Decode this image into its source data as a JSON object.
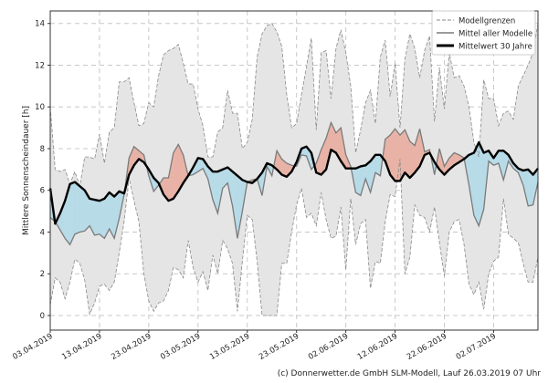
{
  "chart_data": {
    "type": "area",
    "title": "",
    "xlabel": "",
    "ylabel": "Mittlere Sonnenscheindauer [h]",
    "ylim": [
      -0.7,
      14.6
    ],
    "yticks": [
      0,
      2,
      4,
      6,
      8,
      10,
      12,
      14
    ],
    "xtick_labels": [
      "03.04.2019",
      "13.04.2019",
      "23.04.2019",
      "03.05.2019",
      "13.05.2019",
      "23.05.2019",
      "02.06.2019",
      "12.06.2019",
      "22.06.2019",
      "02.07.2019"
    ],
    "xtick_step_days": 10,
    "x_start": "03.04.2019",
    "grid": true,
    "legend_position": "top-right",
    "legend": [
      "Modellgrenzen",
      "Mittel aller Modelle",
      "Mittelwert 30 Jahre"
    ],
    "series": [
      {
        "name": "Modellgrenzen (oben)",
        "values": [
          10.0,
          7.0,
          6.9,
          7.0,
          6.3,
          6.9,
          6.2,
          7.6,
          7.6,
          7.5,
          8.7,
          7.3,
          8.8,
          9.0,
          11.2,
          11.2,
          11.4,
          10.2,
          9.1,
          9.2,
          10.2,
          10.0,
          11.5,
          12.5,
          12.7,
          12.8,
          13.0,
          12.1,
          11.1,
          11.1,
          9.9,
          9.1,
          7.6,
          7.6,
          8.8,
          9.0,
          10.8,
          9.7,
          9.7,
          8.0,
          8.3,
          9.4,
          12.4,
          13.5,
          13.9,
          14.0,
          13.6,
          12.9,
          10.6,
          9.0,
          9.2,
          10.6,
          11.9,
          13.3,
          8.9,
          12.6,
          12.7,
          10.4,
          12.8,
          13.7,
          12.6,
          11.0,
          7.8,
          8.9,
          10.2,
          10.8,
          9.2,
          12.4,
          13.2,
          10.5,
          12.1,
          9.0,
          12.3,
          13.5,
          12.8,
          11.4,
          12.7,
          13.4,
          9.3,
          11.9,
          9.9,
          12.6,
          11.4,
          11.5,
          11.0,
          10.0,
          8.3,
          7.6,
          11.3,
          10.4,
          10.4,
          9.1,
          9.7,
          9.8,
          9.4,
          11.0,
          11.5,
          12.0,
          12.6,
          14.0
        ]
      },
      {
        "name": "Modellgrenzen (unten)",
        "values": [
          0.5,
          1.8,
          1.6,
          0.8,
          1.6,
          2.7,
          2.5,
          1.7,
          0.05,
          0.6,
          1.4,
          1.5,
          1.2,
          1.6,
          3.0,
          4.5,
          6.6,
          5.5,
          4.5,
          2.0,
          0.7,
          0.2,
          0.6,
          0.7,
          1.2,
          2.3,
          2.2,
          1.8,
          3.6,
          2.3,
          1.6,
          2.1,
          1.2,
          2.9,
          2.0,
          3.6,
          3.2,
          2.5,
          0.2,
          2.6,
          4.8,
          4.6,
          2.6,
          0.0,
          0.0,
          0.0,
          0.0,
          2.5,
          2.5,
          4.0,
          5.3,
          6.1,
          4.7,
          4.9,
          4.3,
          5.9,
          4.6,
          3.7,
          3.8,
          5.2,
          2.2,
          5.6,
          3.4,
          4.4,
          4.6,
          1.3,
          2.6,
          2.5,
          4.5,
          5.8,
          5.7,
          7.5,
          2.0,
          2.8,
          5.3,
          4.8,
          4.7,
          4.0,
          5.2,
          3.5,
          1.9,
          4.0,
          4.5,
          4.6,
          3.4,
          1.5,
          1.0,
          1.6,
          0.3,
          2.0,
          2.6,
          2.8,
          5.6,
          3.9,
          3.7,
          3.5,
          2.5,
          1.6,
          1.6,
          2.8
        ]
      },
      {
        "name": "Mittel aller Modelle",
        "values": [
          4.7,
          4.5,
          4.1,
          3.7,
          3.4,
          3.9,
          4.0,
          4.05,
          4.3,
          3.85,
          3.9,
          3.7,
          4.15,
          3.7,
          4.65,
          5.8,
          7.55,
          8.1,
          7.9,
          7.7,
          6.7,
          5.95,
          6.25,
          6.6,
          6.6,
          7.8,
          8.2,
          7.7,
          6.7,
          6.75,
          6.9,
          7.05,
          6.55,
          5.55,
          4.9,
          6.1,
          6.35,
          5.25,
          3.7,
          5.0,
          6.4,
          6.5,
          6.55,
          5.75,
          7.15,
          6.7,
          7.9,
          7.5,
          7.3,
          7.2,
          7.15,
          7.7,
          7.65,
          7.0,
          7.3,
          7.95,
          8.5,
          9.25,
          8.75,
          9.0,
          7.7,
          7.15,
          5.9,
          5.75,
          6.55,
          5.9,
          6.85,
          6.7,
          8.45,
          8.65,
          8.95,
          8.65,
          8.9,
          8.35,
          8.15,
          8.95,
          7.85,
          7.95,
          6.75,
          8.0,
          7.15,
          7.55,
          7.8,
          7.7,
          7.55,
          6.25,
          4.8,
          4.3,
          5.1,
          7.4,
          7.2,
          7.3,
          6.5,
          7.4,
          7.05,
          6.85,
          6.25,
          5.25,
          5.3,
          6.4
        ]
      },
      {
        "name": "Mittelwert 30 Jahre",
        "values": [
          6.1,
          4.4,
          4.9,
          5.5,
          6.3,
          6.4,
          6.2,
          6.0,
          5.6,
          5.55,
          5.5,
          5.6,
          5.9,
          5.7,
          5.95,
          5.85,
          6.75,
          7.2,
          7.5,
          7.35,
          7.0,
          6.6,
          6.35,
          5.8,
          5.5,
          5.6,
          5.95,
          6.35,
          6.7,
          7.1,
          7.55,
          7.5,
          7.15,
          6.9,
          6.9,
          7.0,
          7.1,
          6.9,
          6.7,
          6.5,
          6.4,
          6.35,
          6.55,
          6.85,
          7.3,
          7.2,
          7.0,
          6.75,
          6.65,
          6.9,
          7.35,
          8.0,
          8.1,
          7.8,
          6.85,
          6.75,
          7.0,
          7.95,
          7.8,
          7.4,
          7.05,
          7.05,
          7.05,
          7.15,
          7.2,
          7.4,
          7.7,
          7.7,
          7.4,
          6.75,
          6.45,
          6.45,
          6.85,
          6.6,
          6.85,
          7.15,
          7.7,
          7.8,
          7.35,
          7.0,
          6.75,
          7.0,
          7.2,
          7.35,
          7.5,
          7.7,
          7.8,
          8.3,
          7.8,
          7.9,
          7.55,
          7.9,
          7.9,
          7.7,
          7.3,
          7.05,
          6.95,
          7.0,
          6.75,
          7.05
        ]
      }
    ],
    "colors": {
      "envelope_fill": "#e5e5e5",
      "envelope_line": "#8a8a8a",
      "model_line": "#7a7a7a",
      "above_fill": "#e8b3a6",
      "below_fill": "#b8dbe8",
      "clim_line": "#000000"
    }
  },
  "footer": {
    "credit": "(c) Donnerwetter.de GmbH SLM-Modell, Lauf 26.03.2019 07 Uhr"
  }
}
